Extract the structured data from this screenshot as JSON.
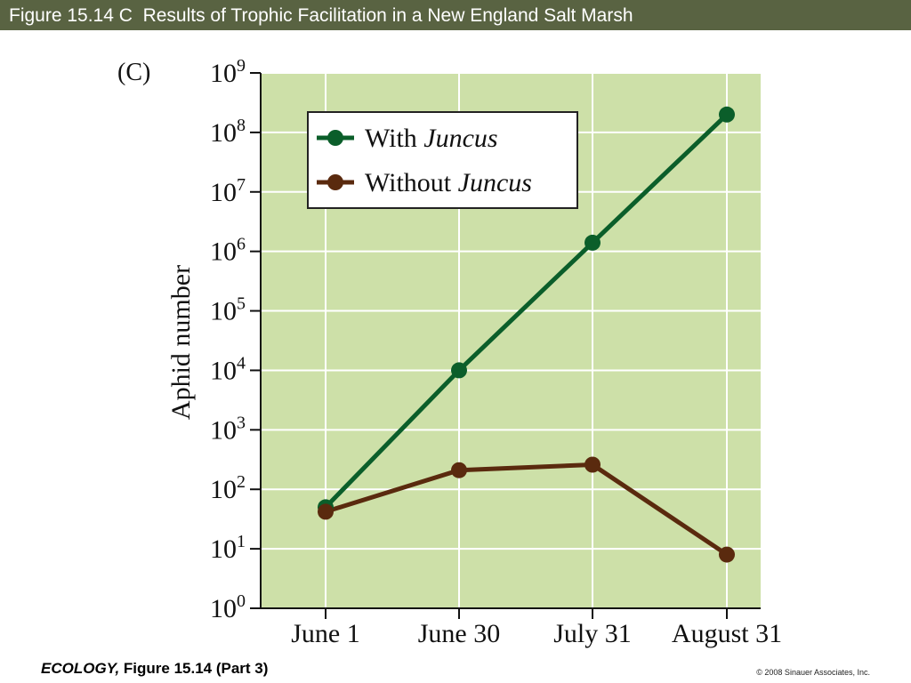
{
  "slide": {
    "title": "Figure 15.14 C  Results of Trophic Facilitation in a New England Salt Marsh",
    "footer_book": "ECOLOGY,",
    "footer_figure": " Figure 15.14 (Part 3)",
    "copyright": "© 2008 Sinauer Associates, Inc."
  },
  "colors": {
    "title_bar": "#596342",
    "plot_background": "#cde0a8",
    "grid": "#ffffff",
    "with_juncus": "#0b5e2a",
    "without_juncus": "#5a2a0e"
  },
  "chart_data": {
    "type": "line",
    "panel_label": "(C)",
    "xlabel": "",
    "ylabel": "Aphid number",
    "y_scale": "log",
    "ylim": [
      1,
      1000000000
    ],
    "grid": true,
    "legend_position": "top-left",
    "categories": [
      "June 1",
      "June 30",
      "July 31",
      "August 31"
    ],
    "y_ticks": [
      {
        "base": "10",
        "exp": "0",
        "value": 1
      },
      {
        "base": "10",
        "exp": "1",
        "value": 10
      },
      {
        "base": "10",
        "exp": "2",
        "value": 100
      },
      {
        "base": "10",
        "exp": "3",
        "value": 1000
      },
      {
        "base": "10",
        "exp": "4",
        "value": 10000
      },
      {
        "base": "10",
        "exp": "5",
        "value": 100000
      },
      {
        "base": "10",
        "exp": "6",
        "value": 1000000
      },
      {
        "base": "10",
        "exp": "7",
        "value": 10000000
      },
      {
        "base": "10",
        "exp": "8",
        "value": 100000000
      },
      {
        "base": "10",
        "exp": "9",
        "value": 1000000000
      }
    ],
    "series": [
      {
        "name": "With Juncus",
        "legend_prefix": "With ",
        "legend_italic": "Juncus",
        "color": "#0b5e2a",
        "values": [
          50,
          10000,
          1400000,
          200000000
        ]
      },
      {
        "name": "Without Juncus",
        "legend_prefix": "Without ",
        "legend_italic": "Juncus",
        "color": "#5a2a0e",
        "values": [
          42,
          210,
          260,
          8
        ]
      }
    ]
  }
}
